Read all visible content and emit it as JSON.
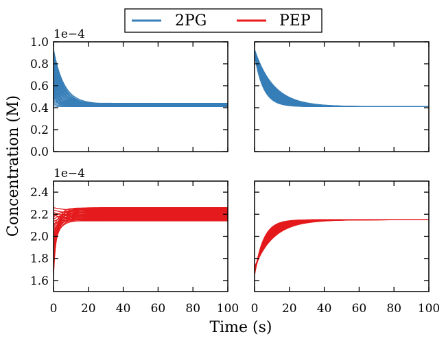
{
  "chart_data": {
    "type": "line",
    "xlabel": "Time (s)",
    "ylabel": "Concentration (M)",
    "legend": {
      "position": "top-center",
      "entries": [
        {
          "label": "2PG",
          "color": "#377eb8"
        },
        {
          "label": "PEP",
          "color": "#e41a1c"
        }
      ]
    },
    "xlim": [
      0,
      100
    ],
    "xticks": [
      0,
      20,
      40,
      60,
      80,
      100
    ],
    "xtick_labels": [
      "0",
      "20",
      "40",
      "60",
      "80",
      "100"
    ],
    "panels": [
      {
        "id": "2pg-left",
        "species": "2PG",
        "color": "#377eb8",
        "offset_label": "1e−4",
        "ylim": [
          0.0,
          1.0
        ],
        "yticks": [
          0.0,
          0.2,
          0.4,
          0.6,
          0.8,
          1.0
        ],
        "ytick_labels": [
          "0.0",
          "0.2",
          "0.4",
          "0.6",
          "0.8",
          "1.0"
        ],
        "show_ytick_labels": true,
        "show_xtick_labels": false,
        "curves": {
          "start_min": 0.42,
          "start_max": 0.93,
          "final_min": 0.41,
          "final_max": 0.44,
          "tau_min": 1.5,
          "tau_max": 6.0,
          "count": 30
        }
      },
      {
        "id": "2pg-right",
        "species": "2PG",
        "color": "#377eb8",
        "ylim": [
          0.0,
          1.0
        ],
        "yticks": [
          0.0,
          0.2,
          0.4,
          0.6,
          0.8,
          1.0
        ],
        "show_ytick_labels": false,
        "show_xtick_labels": false,
        "curves": {
          "start_min": 0.88,
          "start_max": 0.93,
          "final_min": 0.41,
          "final_max": 0.41,
          "tau_min": 5.0,
          "tau_max": 11.0,
          "count": 30
        }
      },
      {
        "id": "pep-left",
        "species": "PEP",
        "color": "#e41a1c",
        "offset_label": "1e−4",
        "ylim": [
          1.5,
          2.5
        ],
        "yticks": [
          1.6,
          1.8,
          2.0,
          2.2,
          2.4
        ],
        "ytick_labels": [
          "1.6",
          "1.8",
          "2.0",
          "2.2",
          "2.4"
        ],
        "show_ytick_labels": true,
        "show_xtick_labels": true,
        "curves": {
          "start_min": 1.65,
          "start_max": 2.26,
          "final_min": 2.14,
          "final_max": 2.26,
          "tau_min": 1.5,
          "tau_max": 6.0,
          "count": 30
        }
      },
      {
        "id": "pep-right",
        "species": "PEP",
        "color": "#e41a1c",
        "ylim": [
          1.5,
          2.5
        ],
        "yticks": [
          1.6,
          1.8,
          2.0,
          2.2,
          2.4
        ],
        "show_ytick_labels": false,
        "show_xtick_labels": true,
        "curves": {
          "start_min": 1.65,
          "start_max": 1.72,
          "final_min": 2.15,
          "final_max": 2.15,
          "tau_min": 5.0,
          "tau_max": 11.0,
          "count": 30
        }
      }
    ]
  }
}
